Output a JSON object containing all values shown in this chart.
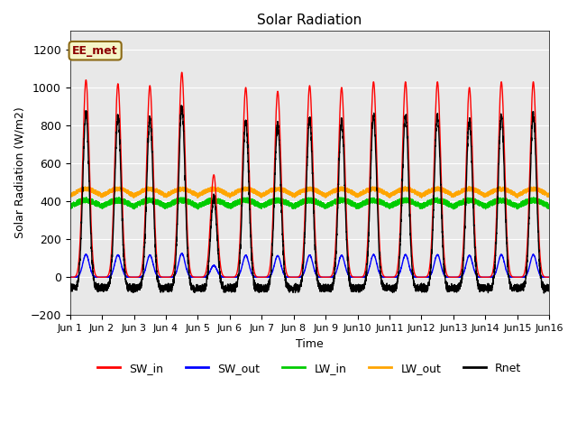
{
  "title": "Solar Radiation",
  "xlabel": "Time",
  "ylabel": "Solar Radiation (W/m2)",
  "ylim": [
    -200,
    1300
  ],
  "yticks": [
    -200,
    0,
    200,
    400,
    600,
    800,
    1000,
    1200
  ],
  "xstart": 0,
  "xend": 15,
  "num_days": 15,
  "points_per_day": 288,
  "annotation_text": "EE_met",
  "annotation_box_color": "#f5f5c8",
  "annotation_border_color": "#8B6914",
  "annotation_text_color": "#8B0000",
  "sw_in_peaks": [
    1040,
    1020,
    1010,
    1080,
    540,
    1000,
    980,
    1010,
    1000,
    1030,
    1030,
    1030,
    1000,
    1030,
    1030
  ],
  "series": {
    "SW_in": {
      "color": "#ff0000",
      "lw": 1.0
    },
    "SW_out": {
      "color": "#0000ff",
      "lw": 1.0
    },
    "LW_in": {
      "color": "#00cc00",
      "lw": 1.0
    },
    "LW_out": {
      "color": "#ffa500",
      "lw": 1.0
    },
    "Rnet": {
      "color": "#000000",
      "lw": 1.0
    }
  },
  "legend_ncol": 5,
  "fig_bg_color": "#ffffff",
  "ax_bg_color": "#e8e8e8",
  "grid_color": "#ffffff",
  "figsize": [
    6.4,
    4.8
  ],
  "dpi": 100
}
